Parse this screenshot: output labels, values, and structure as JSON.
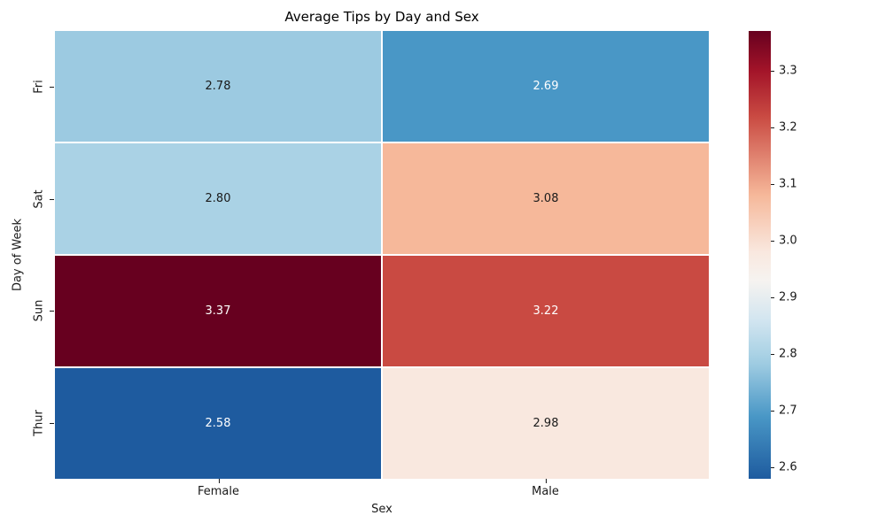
{
  "chart_data": {
    "type": "heatmap",
    "title": "Average Tips by Day and Sex",
    "xlabel": "Sex",
    "ylabel": "Day of Week",
    "x_categories": [
      "Female",
      "Male"
    ],
    "y_categories": [
      "Fri",
      "Sat",
      "Sun",
      "Thur"
    ],
    "values": [
      [
        2.78,
        2.69
      ],
      [
        2.8,
        3.08
      ],
      [
        3.37,
        3.22
      ],
      [
        2.58,
        2.98
      ]
    ],
    "value_labels": [
      [
        "2.78",
        "2.69"
      ],
      [
        "2.80",
        "3.08"
      ],
      [
        "3.37",
        "3.22"
      ],
      [
        "2.58",
        "2.98"
      ]
    ],
    "cell_colors": [
      [
        "#9ccae1",
        "#4997c6"
      ],
      [
        "#aad2e5",
        "#f6b89a"
      ],
      [
        "#67001f",
        "#c94a42"
      ],
      [
        "#1e5b9f",
        "#f9e8df"
      ]
    ],
    "cell_text_colors": [
      [
        "#1a1a1a",
        "#ffffff"
      ],
      [
        "#1a1a1a",
        "#1a1a1a"
      ],
      [
        "#ffffff",
        "#ffffff"
      ],
      [
        "#ffffff",
        "#1a1a1a"
      ]
    ],
    "colormap": "RdBu_r",
    "vmin": 2.58,
    "vmax": 3.37,
    "grid_line_color": "#ffffff",
    "axis_text_color": "#1a1a1a",
    "legend_position": "right-colorbar",
    "colorbar_tick_labels": [
      "3.3",
      "3.2",
      "3.1",
      "3.0",
      "2.9",
      "2.8",
      "2.7",
      "2.6"
    ],
    "colorbar_tick_values": [
      3.3,
      3.2,
      3.1,
      3.0,
      2.9,
      2.8,
      2.7,
      2.6
    ],
    "colorbar_gradient": [
      {
        "pos": 0.0,
        "color": "#67001f"
      },
      {
        "pos": 8.9,
        "color": "#a31429"
      },
      {
        "pos": 19.0,
        "color": "#c94a42"
      },
      {
        "pos": 36.7,
        "color": "#f6b89a"
      },
      {
        "pos": 49.4,
        "color": "#f9e8df"
      },
      {
        "pos": 55.7,
        "color": "#f6f3f0"
      },
      {
        "pos": 64.6,
        "color": "#d2e5f0"
      },
      {
        "pos": 72.2,
        "color": "#aad2e5"
      },
      {
        "pos": 74.7,
        "color": "#9ccae1"
      },
      {
        "pos": 86.1,
        "color": "#4997c6"
      },
      {
        "pos": 100.0,
        "color": "#1e5b9f"
      }
    ]
  }
}
